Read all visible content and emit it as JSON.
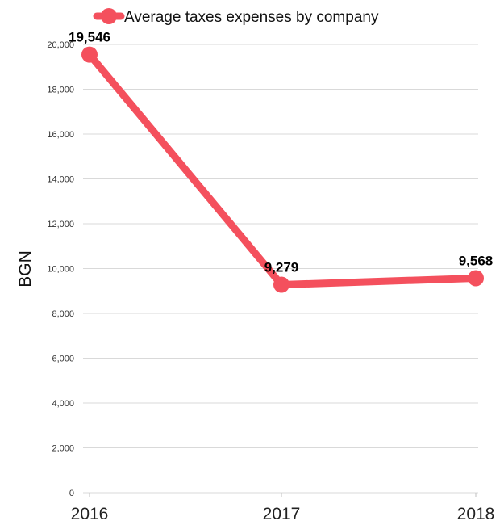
{
  "chart_data": {
    "type": "line",
    "title": "",
    "xlabel": "",
    "ylabel": "BGN",
    "categories": [
      "2016",
      "2017",
      "2018"
    ],
    "series": [
      {
        "name": "Average taxes expenses by company",
        "values": [
          19546,
          9279,
          9568
        ],
        "color": "#f4505d"
      }
    ],
    "data_labels": [
      "19,546",
      "9,279",
      "9,568"
    ],
    "ylim": [
      0,
      20000
    ],
    "yticks": [
      0,
      2000,
      4000,
      6000,
      8000,
      10000,
      12000,
      14000,
      16000,
      18000,
      20000
    ],
    "ytick_labels": [
      "0",
      "2,000",
      "4,000",
      "6,000",
      "8,000",
      "10,000",
      "12,000",
      "14,000",
      "16,000",
      "18,000",
      "20,000"
    ],
    "grid": true,
    "legend_position": "top"
  }
}
